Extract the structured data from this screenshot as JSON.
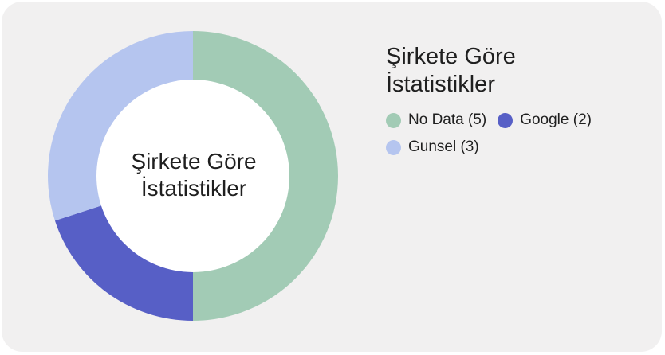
{
  "chart_data": {
    "type": "pie",
    "donut": true,
    "title": "Şirkete Göre İstatistikler",
    "center_label": "Şirkete Göre İstatistikler",
    "legend_position": "right",
    "slices": [
      {
        "label": "No Data (5)",
        "name": "No Data",
        "value": 5,
        "color": "#a2cbb5"
      },
      {
        "label": "Google (2)",
        "name": "Google",
        "value": 2,
        "color": "#575fc6"
      },
      {
        "label": "Gunsel (3)",
        "name": "Gunsel",
        "value": 3,
        "color": "#b5c5ef"
      }
    ]
  },
  "colors": {
    "card_background": "#f1f0f0",
    "donut_hole": "#ffffff",
    "text": "#1f1f1f"
  }
}
